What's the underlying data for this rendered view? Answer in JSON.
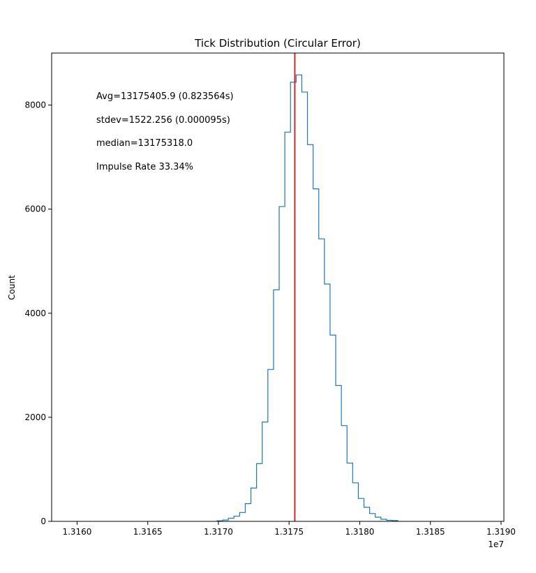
{
  "chart_data": {
    "type": "histogram",
    "title": "Tick Distribution (Circular Error)",
    "xlabel": "",
    "ylabel": "Count",
    "x_offset_label": "1e7",
    "xlim": [
      13158200,
      13190200
    ],
    "ylim": [
      0,
      9000
    ],
    "x_ticks": [
      13160000,
      13165000,
      13170000,
      13175000,
      13180000,
      13185000,
      13190000
    ],
    "x_tick_labels": [
      "1.3160",
      "1.3165",
      "1.3170",
      "1.3175",
      "1.3180",
      "1.3185",
      "1.3190"
    ],
    "y_ticks": [
      0,
      2000,
      4000,
      6000,
      8000
    ],
    "y_tick_labels": [
      "0",
      "2000",
      "4000",
      "6000",
      "8000"
    ],
    "bin_edges": [
      13169900,
      13170300,
      13170700,
      13171100,
      13171500,
      13171900,
      13172300,
      13172700,
      13173100,
      13173500,
      13173900,
      13174300,
      13174700,
      13175100,
      13175500,
      13175900,
      13176300,
      13176700,
      13177100,
      13177500,
      13177900,
      13178300,
      13178700,
      13179100,
      13179500,
      13179900,
      13180300,
      13180700,
      13181100,
      13181500,
      13181900,
      13182300,
      13182700
    ],
    "counts": [
      10,
      25,
      60,
      100,
      170,
      340,
      640,
      1110,
      1910,
      2920,
      4450,
      6050,
      7480,
      8440,
      8580,
      8250,
      7240,
      6390,
      5430,
      4560,
      3580,
      2610,
      1840,
      1120,
      740,
      440,
      270,
      150,
      80,
      40,
      20,
      15
    ],
    "series": [
      {
        "color": "#1f77b4"
      }
    ],
    "vline": {
      "x": 13175405.9,
      "color": "#d62728"
    },
    "annotations": [
      "Avg=13175405.9 (0.823564s)",
      "stdev=1522.256 (0.000095s)",
      "median=13175318.0",
      "Impulse Rate 33.34%"
    ],
    "grid": false,
    "legend": "none"
  }
}
